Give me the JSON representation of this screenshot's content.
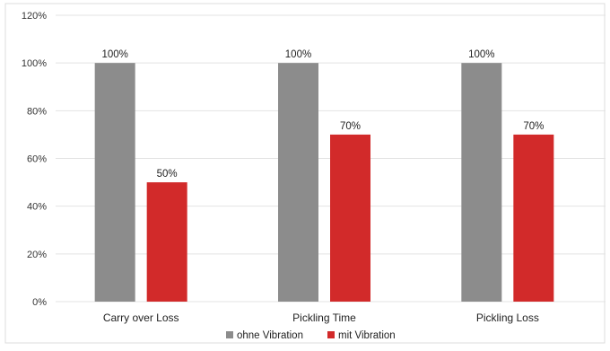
{
  "chart_data": {
    "type": "bar",
    "categories": [
      "Carry over Loss",
      "Pickling Time",
      "Pickling Loss"
    ],
    "series": [
      {
        "name": "ohne Vibration",
        "color": "#8c8c8c",
        "values": [
          100,
          100,
          100
        ],
        "labels": [
          "100%",
          "100%",
          "100%"
        ]
      },
      {
        "name": "mit Vibration",
        "color": "#d22a2a",
        "values": [
          50,
          70,
          70
        ],
        "labels": [
          "50%",
          "70%",
          "70%"
        ]
      }
    ],
    "yticks": [
      "0%",
      "20%",
      "40%",
      "60%",
      "80%",
      "100%",
      "120%"
    ],
    "ylim": [
      0,
      120
    ],
    "grid": true,
    "legend": "bottom",
    "title": "",
    "xlabel": "",
    "ylabel": ""
  }
}
